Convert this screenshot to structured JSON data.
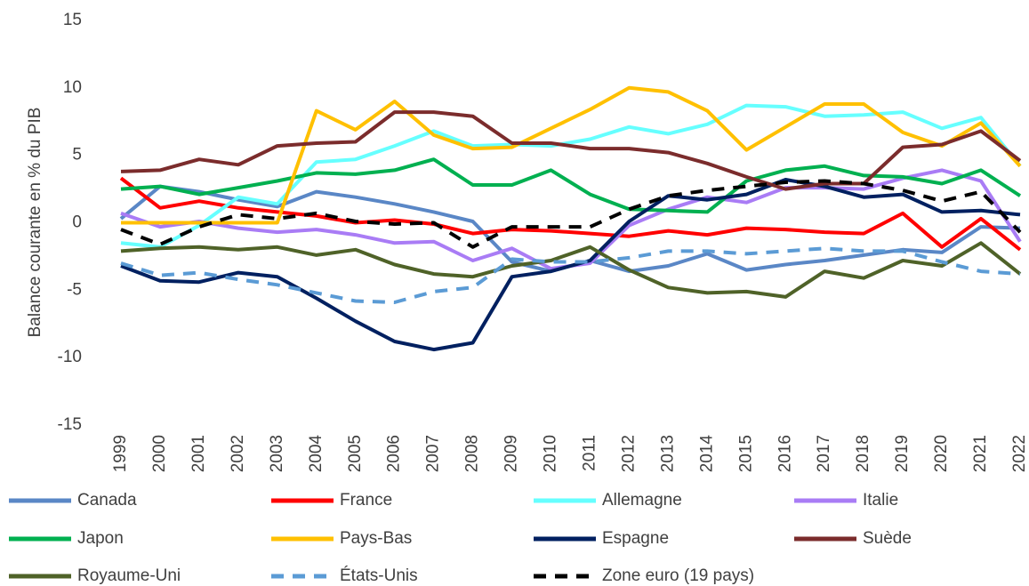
{
  "chart_data": {
    "type": "line",
    "y_label": "Balance courante en % du PIB",
    "categories": [
      "1999",
      "2000",
      "2001",
      "2002",
      "2003",
      "2004",
      "2005",
      "2006",
      "2007",
      "2008",
      "2009",
      "2010",
      "2011",
      "2012",
      "2013",
      "2014",
      "2015",
      "2016",
      "2017",
      "2018",
      "2019",
      "2020",
      "2021",
      "2022"
    ],
    "ylim": [
      -15,
      15
    ],
    "yticks": [
      -15,
      -10,
      -5,
      0,
      5,
      10,
      15
    ],
    "grid": false,
    "legend": "bottom",
    "series": [
      {
        "name": "Canada",
        "color": "#5a87c6",
        "values": [
          0.3,
          2.7,
          2.3,
          1.7,
          1.2,
          2.3,
          1.9,
          1.4,
          0.8,
          0.1,
          -2.9,
          -3.6,
          -2.8,
          -3.6,
          -3.2,
          -2.3,
          -3.5,
          -3.1,
          -2.8,
          -2.4,
          -2.0,
          -2.2,
          -0.3,
          -0.4
        ]
      },
      {
        "name": "France",
        "color": "#ff0000",
        "values": [
          3.3,
          1.1,
          1.6,
          1.1,
          0.8,
          0.5,
          0.0,
          0.2,
          -0.1,
          -0.8,
          -0.5,
          -0.6,
          -0.8,
          -1.0,
          -0.6,
          -0.9,
          -0.4,
          -0.5,
          -0.7,
          -0.8,
          0.7,
          -1.8,
          0.3,
          -2.0
        ]
      },
      {
        "name": "Allemagne",
        "color": "#66ffff",
        "values": [
          -1.5,
          -1.8,
          -0.2,
          1.9,
          1.4,
          4.5,
          4.7,
          5.7,
          6.8,
          5.7,
          5.8,
          5.7,
          6.2,
          7.1,
          6.6,
          7.3,
          8.7,
          8.6,
          7.9,
          8.0,
          8.2,
          7.0,
          7.8,
          4.2
        ]
      },
      {
        "name": "Italie",
        "color": "#a97cf5",
        "values": [
          0.7,
          -0.3,
          0.1,
          -0.4,
          -0.7,
          -0.5,
          -0.9,
          -1.5,
          -1.4,
          -2.8,
          -1.9,
          -3.4,
          -3.0,
          -0.2,
          1.0,
          1.9,
          1.5,
          2.6,
          2.6,
          2.5,
          3.3,
          3.9,
          3.1,
          -1.4
        ]
      },
      {
        "name": "Japon",
        "color": "#00b050",
        "values": [
          2.5,
          2.7,
          2.1,
          2.6,
          3.1,
          3.7,
          3.6,
          3.9,
          4.7,
          2.8,
          2.8,
          3.9,
          2.1,
          1.0,
          0.9,
          0.8,
          3.1,
          3.9,
          4.2,
          3.5,
          3.4,
          2.9,
          3.9,
          2.0
        ]
      },
      {
        "name": "Pays-Bas",
        "color": "#ffc000",
        "values": [
          0.0,
          0.0,
          0.0,
          0.0,
          0.0,
          8.3,
          6.9,
          9.0,
          6.5,
          5.5,
          5.6,
          7.0,
          8.4,
          10.0,
          9.7,
          8.3,
          5.4,
          7.1,
          8.8,
          8.8,
          6.7,
          5.7,
          7.4,
          4.2
        ]
      },
      {
        "name": "Espagne",
        "color": "#002060",
        "values": [
          -3.2,
          -4.3,
          -4.4,
          -3.7,
          -4.0,
          -5.6,
          -7.3,
          -8.8,
          -9.4,
          -8.9,
          -4.0,
          -3.6,
          -2.8,
          0.1,
          2.0,
          1.7,
          2.1,
          3.2,
          2.7,
          1.9,
          2.1,
          0.8,
          0.9,
          0.6
        ]
      },
      {
        "name": "Suède",
        "color": "#7b2c2c",
        "values": [
          3.8,
          3.9,
          4.7,
          4.3,
          5.7,
          5.9,
          6.0,
          8.2,
          8.2,
          7.9,
          5.9,
          5.9,
          5.5,
          5.5,
          5.2,
          4.4,
          3.4,
          2.5,
          2.9,
          2.9,
          5.6,
          5.8,
          6.8,
          4.6
        ]
      },
      {
        "name": "Royaume-Uni",
        "color": "#4f6228",
        "values": [
          -2.1,
          -1.9,
          -1.8,
          -2.0,
          -1.8,
          -2.4,
          -2.0,
          -3.1,
          -3.8,
          -4.0,
          -3.2,
          -2.8,
          -1.8,
          -3.5,
          -4.8,
          -5.2,
          -5.1,
          -5.5,
          -3.6,
          -4.1,
          -2.8,
          -3.2,
          -1.5,
          -3.8
        ]
      },
      {
        "name": "États-Unis",
        "color": "#5b9bd5",
        "dashed": true,
        "values": [
          -3.0,
          -3.9,
          -3.7,
          -4.2,
          -4.6,
          -5.2,
          -5.8,
          -5.9,
          -5.1,
          -4.8,
          -2.7,
          -2.9,
          -2.9,
          -2.6,
          -2.1,
          -2.1,
          -2.3,
          -2.1,
          -1.9,
          -2.1,
          -2.1,
          -2.9,
          -3.6,
          -3.8
        ]
      },
      {
        "name": "Zone euro (19 pays)",
        "color": "#000000",
        "dashed": true,
        "values": [
          -0.5,
          -1.6,
          -0.3,
          0.6,
          0.3,
          0.7,
          0.1,
          -0.1,
          0.0,
          -1.8,
          -0.3,
          -0.3,
          -0.3,
          1.0,
          2.0,
          2.4,
          2.7,
          3.0,
          3.1,
          2.9,
          2.4,
          1.6,
          2.3,
          -0.7
        ]
      }
    ]
  }
}
